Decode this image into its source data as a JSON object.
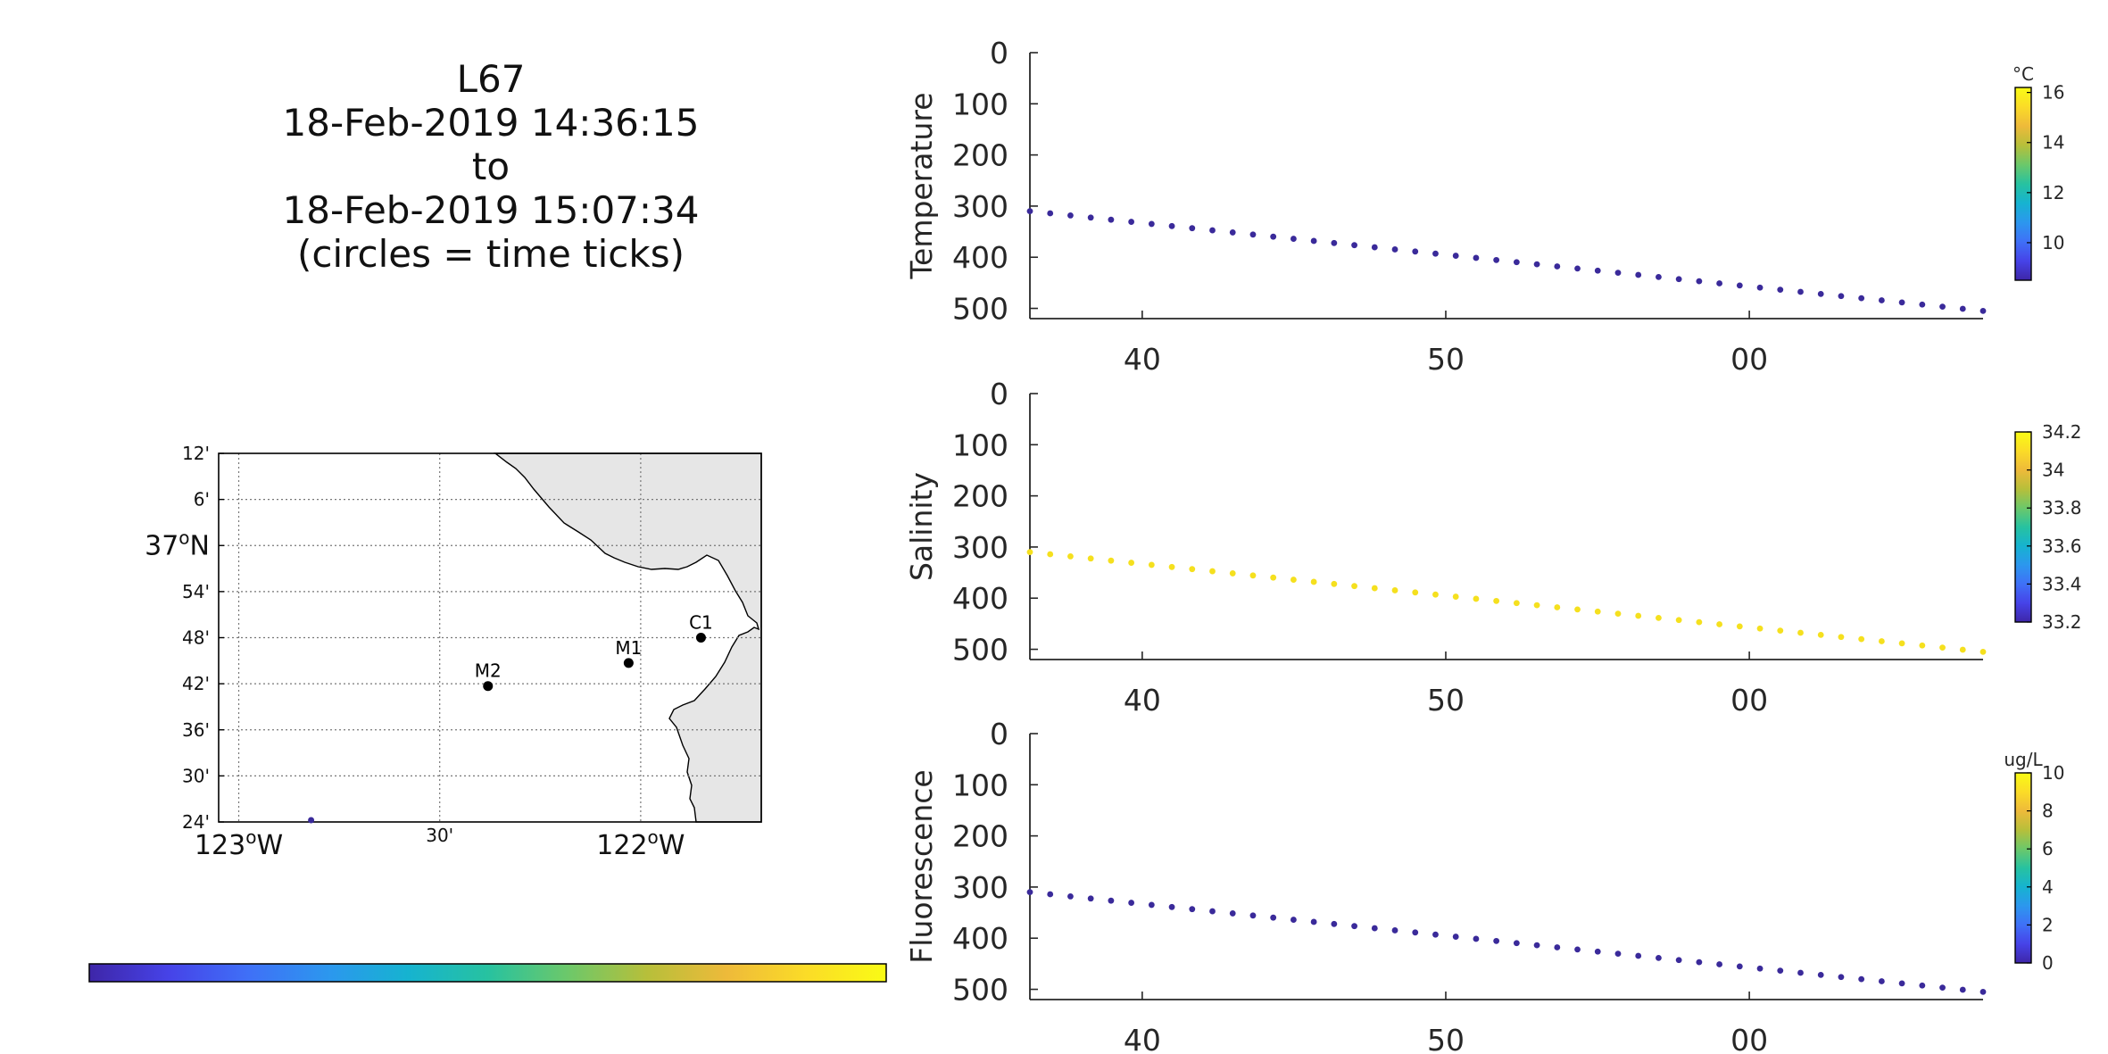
{
  "title_lines": [
    "L67",
    "18-Feb-2019 14:36:15",
    "to",
    "18-Feb-2019 15:07:34",
    "(circles = time ticks)"
  ],
  "chart_data": [
    {
      "type": "map",
      "lat_ticks": [
        "12'",
        "6'",
        "37°N",
        "54'",
        "48'",
        "42'",
        "36'",
        "30'",
        "24'"
      ],
      "lon_ticks": [
        "123°W",
        "30'",
        "122°W"
      ],
      "lat_range": [
        36.4,
        37.2
      ],
      "lon_range": [
        -123.05,
        -121.7
      ],
      "stations": [
        {
          "name": "M2",
          "lon": -122.38,
          "lat": 36.695
        },
        {
          "name": "M1",
          "lon": -122.03,
          "lat": 36.745
        },
        {
          "name": "C1",
          "lon": -121.85,
          "lat": 36.8
        }
      ],
      "track_point": {
        "lon": -122.82,
        "lat": 36.4
      },
      "grid": true
    },
    {
      "type": "scatter",
      "ylabel": "Temperature",
      "ylim": [
        0,
        520
      ],
      "yticks": [
        "0",
        "100",
        "200",
        "300",
        "400",
        "500"
      ],
      "xticks": [
        "40",
        "50",
        "00"
      ],
      "xtick_positions_min": [
        40,
        50,
        60
      ],
      "xlim_min": [
        36.3,
        67.7
      ],
      "depth_start": 310,
      "depth_end": 505,
      "point_count": 48,
      "color": "#3a2a9a",
      "colorbar": {
        "unit": "°C",
        "ticks": [
          "10",
          "12",
          "14",
          "16"
        ],
        "range": [
          8.5,
          16.2
        ]
      }
    },
    {
      "type": "scatter",
      "ylabel": "Salinity",
      "ylim": [
        0,
        520
      ],
      "yticks": [
        "0",
        "100",
        "200",
        "300",
        "400",
        "500"
      ],
      "xticks": [
        "40",
        "50",
        "00"
      ],
      "xtick_positions_min": [
        40,
        50,
        60
      ],
      "xlim_min": [
        36.3,
        67.7
      ],
      "depth_start": 310,
      "depth_end": 505,
      "point_count": 48,
      "color": "#f5e01e",
      "colorbar": {
        "unit": "",
        "ticks": [
          "33.2",
          "33.4",
          "33.6",
          "33.8",
          "34",
          "34.2"
        ],
        "range": [
          33.2,
          34.2
        ]
      }
    },
    {
      "type": "scatter",
      "ylabel": "Fluorescence",
      "ylim": [
        0,
        520
      ],
      "yticks": [
        "0",
        "100",
        "200",
        "300",
        "400",
        "500"
      ],
      "xticks": [
        "40",
        "50",
        "00"
      ],
      "xtick_positions_min": [
        40,
        50,
        60
      ],
      "xlim_min": [
        36.3,
        67.7
      ],
      "depth_start": 310,
      "depth_end": 505,
      "point_count": 48,
      "color": "#3a2a9a",
      "colorbar": {
        "unit": "ug/L",
        "ticks": [
          "0",
          "2",
          "4",
          "6",
          "8",
          "10"
        ],
        "range": [
          0,
          10
        ]
      }
    }
  ],
  "colormap": [
    "#3e26a8",
    "#4643e8",
    "#3f70f7",
    "#2c97ee",
    "#16b3d0",
    "#27c2a0",
    "#6cc86a",
    "#b7bf3a",
    "#eeba3a",
    "#fbdc27",
    "#f9fb15"
  ]
}
